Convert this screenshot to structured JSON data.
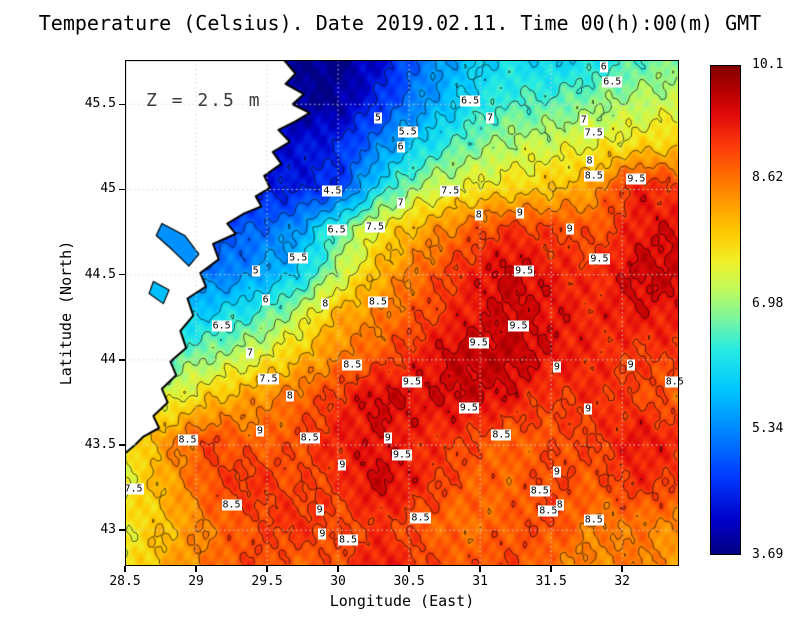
{
  "title": "Temperature (Celsius). Date 2019.02.11. Time 00(h):00(m) GMT",
  "annotation": "Z = 2.5 m",
  "axes": {
    "xlabel": "Longitude (East)",
    "ylabel": "Latitude (North)",
    "x_ticks": [
      28.5,
      29,
      29.5,
      30,
      30.5,
      31,
      31.5,
      32
    ],
    "y_ticks": [
      43,
      43.5,
      44,
      44.5,
      45,
      45.5
    ],
    "x_range": [
      28.5,
      32.4
    ],
    "y_range": [
      42.79,
      45.76
    ]
  },
  "colorbar": {
    "min": 3.69,
    "max": 10.1,
    "ticks": [
      "10.1",
      "8.62",
      "6.98",
      "5.34",
      "3.69"
    ],
    "stops": [
      {
        "t": 0.0,
        "c": [
          0,
          0,
          130
        ]
      },
      {
        "t": 0.07,
        "c": [
          0,
          0,
          200
        ]
      },
      {
        "t": 0.16,
        "c": [
          0,
          60,
          255
        ]
      },
      {
        "t": 0.26,
        "c": [
          0,
          140,
          255
        ]
      },
      {
        "t": 0.34,
        "c": [
          0,
          200,
          255
        ]
      },
      {
        "t": 0.42,
        "c": [
          40,
          235,
          226
        ]
      },
      {
        "t": 0.48,
        "c": [
          120,
          245,
          160
        ]
      },
      {
        "t": 0.54,
        "c": [
          190,
          250,
          95
        ]
      },
      {
        "t": 0.6,
        "c": [
          240,
          240,
          40
        ]
      },
      {
        "t": 0.66,
        "c": [
          255,
          200,
          0
        ]
      },
      {
        "t": 0.72,
        "c": [
          255,
          155,
          0
        ]
      },
      {
        "t": 0.78,
        "c": [
          255,
          105,
          0
        ]
      },
      {
        "t": 0.84,
        "c": [
          250,
          55,
          10
        ]
      },
      {
        "t": 0.9,
        "c": [
          225,
          10,
          10
        ]
      },
      {
        "t": 0.95,
        "c": [
          180,
          0,
          0
        ]
      },
      {
        "t": 1.0,
        "c": [
          130,
          0,
          0
        ]
      }
    ]
  },
  "chart_data": {
    "type": "heatmap",
    "title": "Temperature (Celsius). Date 2019.02.11. Time 00(h):00(m) GMT",
    "xlabel": "Longitude (East)",
    "ylabel": "Latitude (North)",
    "depth_annotation": "Z = 2.5 m",
    "colorbar_range": [
      3.69,
      10.1
    ],
    "contour_levels": [
      4.5,
      5,
      5.5,
      6,
      6.5,
      7,
      7.5,
      8,
      8.5,
      9,
      9.5
    ],
    "x": [
      28.5,
      28.8,
      29.1,
      29.4,
      29.7,
      30.0,
      30.3,
      30.6,
      30.9,
      31.2,
      31.5,
      31.8,
      32.1,
      32.4
    ],
    "y": [
      45.76,
      45.51,
      45.27,
      45.02,
      44.77,
      44.52,
      44.28,
      44.03,
      43.78,
      43.53,
      43.29,
      43.04,
      42.79
    ],
    "values": [
      [
        4.0,
        4.0,
        4.0,
        4.0,
        3.8,
        3.7,
        4.2,
        5.2,
        5.8,
        6.2,
        6.0,
        6.2,
        6.6,
        6.8
      ],
      [
        4.0,
        4.0,
        4.0,
        4.0,
        3.8,
        3.8,
        4.6,
        5.4,
        6.1,
        6.5,
        6.6,
        6.9,
        7.1,
        7.3
      ],
      [
        4.2,
        4.2,
        4.2,
        4.2,
        4.2,
        4.5,
        5.3,
        6.1,
        6.7,
        7.1,
        7.3,
        7.5,
        7.7,
        7.9
      ],
      [
        4.3,
        4.3,
        4.3,
        4.3,
        4.4,
        4.6,
        6.2,
        7.1,
        7.5,
        7.7,
        7.9,
        8.3,
        9.3,
        9.0
      ],
      [
        4.8,
        4.8,
        4.8,
        5.0,
        5.4,
        6.6,
        7.6,
        8.2,
        8.7,
        9.1,
        9.0,
        8.8,
        9.3,
        9.5
      ],
      [
        5.2,
        5.2,
        5.1,
        5.4,
        5.9,
        7.1,
        8.1,
        8.7,
        9.2,
        9.6,
        9.3,
        9.1,
        9.6,
        9.6
      ],
      [
        5.8,
        5.8,
        6.0,
        6.4,
        7.1,
        8.1,
        8.5,
        8.9,
        9.3,
        9.6,
        9.4,
        9.2,
        9.4,
        9.3
      ],
      [
        6.5,
        6.6,
        6.9,
        7.3,
        7.9,
        8.5,
        8.8,
        9.3,
        9.7,
        9.7,
        9.4,
        9.2,
        9.0,
        9.1
      ],
      [
        7.0,
        7.3,
        7.9,
        8.3,
        8.7,
        9.1,
        9.6,
        9.4,
        9.6,
        9.4,
        9.0,
        9.2,
        9.0,
        8.7
      ],
      [
        7.4,
        8.4,
        9.0,
        8.7,
        8.9,
        9.3,
        9.4,
        9.2,
        9.0,
        8.7,
        8.9,
        9.0,
        9.4,
        9.2
      ],
      [
        7.5,
        8.2,
        8.9,
        9.2,
        8.9,
        9.1,
        9.6,
        9.2,
        8.8,
        8.7,
        9.0,
        8.8,
        9.2,
        9.0
      ],
      [
        7.6,
        8.0,
        8.6,
        8.9,
        9.2,
        8.9,
        9.1,
        8.8,
        8.6,
        8.8,
        9.0,
        8.5,
        8.6,
        8.4
      ],
      [
        7.5,
        8.2,
        8.6,
        9.0,
        8.7,
        8.9,
        9.4,
        9.0,
        8.8,
        9.0,
        8.6,
        8.4,
        8.6,
        8.2
      ]
    ],
    "contour_labels": [
      {
        "lon": 31.87,
        "lat": 45.72,
        "v": "6"
      },
      {
        "lon": 31.93,
        "lat": 45.63,
        "v": "6.5"
      },
      {
        "lon": 30.93,
        "lat": 45.52,
        "v": "6.5"
      },
      {
        "lon": 30.28,
        "lat": 45.42,
        "v": "5"
      },
      {
        "lon": 31.07,
        "lat": 45.42,
        "v": "7"
      },
      {
        "lon": 30.49,
        "lat": 45.34,
        "v": "5.5"
      },
      {
        "lon": 31.73,
        "lat": 45.41,
        "v": "7"
      },
      {
        "lon": 31.8,
        "lat": 45.33,
        "v": "7.5"
      },
      {
        "lon": 30.44,
        "lat": 45.25,
        "v": "6"
      },
      {
        "lon": 31.77,
        "lat": 45.17,
        "v": "8"
      },
      {
        "lon": 31.8,
        "lat": 45.08,
        "v": "8.5"
      },
      {
        "lon": 32.1,
        "lat": 45.06,
        "v": "9.5"
      },
      {
        "lon": 29.96,
        "lat": 44.99,
        "v": "4.5"
      },
      {
        "lon": 30.79,
        "lat": 44.99,
        "v": "7.5"
      },
      {
        "lon": 30.44,
        "lat": 44.92,
        "v": "7"
      },
      {
        "lon": 30.99,
        "lat": 44.85,
        "v": "8"
      },
      {
        "lon": 31.28,
        "lat": 44.86,
        "v": "9"
      },
      {
        "lon": 29.99,
        "lat": 44.76,
        "v": "6.5"
      },
      {
        "lon": 30.26,
        "lat": 44.78,
        "v": "7.5"
      },
      {
        "lon": 31.63,
        "lat": 44.77,
        "v": "9"
      },
      {
        "lon": 29.72,
        "lat": 44.6,
        "v": "5.5"
      },
      {
        "lon": 29.42,
        "lat": 44.52,
        "v": "5"
      },
      {
        "lon": 31.84,
        "lat": 44.59,
        "v": "9.5"
      },
      {
        "lon": 31.31,
        "lat": 44.52,
        "v": "9.5"
      },
      {
        "lon": 29.49,
        "lat": 44.35,
        "v": "6"
      },
      {
        "lon": 29.91,
        "lat": 44.33,
        "v": "8"
      },
      {
        "lon": 30.28,
        "lat": 44.34,
        "v": "8.5"
      },
      {
        "lon": 31.27,
        "lat": 44.2,
        "v": "9.5"
      },
      {
        "lon": 29.18,
        "lat": 44.2,
        "v": "6.5"
      },
      {
        "lon": 30.99,
        "lat": 44.1,
        "v": "9.5"
      },
      {
        "lon": 29.38,
        "lat": 44.04,
        "v": "7"
      },
      {
        "lon": 30.1,
        "lat": 43.97,
        "v": "8.5"
      },
      {
        "lon": 31.54,
        "lat": 43.96,
        "v": "9"
      },
      {
        "lon": 32.06,
        "lat": 43.97,
        "v": "9"
      },
      {
        "lon": 29.51,
        "lat": 43.89,
        "v": "7.5"
      },
      {
        "lon": 30.52,
        "lat": 43.87,
        "v": "9.5"
      },
      {
        "lon": 32.37,
        "lat": 43.87,
        "v": "8.5"
      },
      {
        "lon": 29.66,
        "lat": 43.79,
        "v": "8"
      },
      {
        "lon": 30.92,
        "lat": 43.72,
        "v": "9.5"
      },
      {
        "lon": 31.76,
        "lat": 43.71,
        "v": "9"
      },
      {
        "lon": 28.94,
        "lat": 43.53,
        "v": "8.5"
      },
      {
        "lon": 29.45,
        "lat": 43.58,
        "v": "9"
      },
      {
        "lon": 29.8,
        "lat": 43.54,
        "v": "8.5"
      },
      {
        "lon": 30.35,
        "lat": 43.54,
        "v": "9"
      },
      {
        "lon": 31.15,
        "lat": 43.56,
        "v": "8.5"
      },
      {
        "lon": 30.45,
        "lat": 43.44,
        "v": "9.5"
      },
      {
        "lon": 30.03,
        "lat": 43.38,
        "v": "9"
      },
      {
        "lon": 31.54,
        "lat": 43.34,
        "v": "9"
      },
      {
        "lon": 28.56,
        "lat": 43.24,
        "v": "7.5"
      },
      {
        "lon": 31.42,
        "lat": 43.23,
        "v": "8.5"
      },
      {
        "lon": 29.25,
        "lat": 43.15,
        "v": "8.5"
      },
      {
        "lon": 31.56,
        "lat": 43.15,
        "v": "8"
      },
      {
        "lon": 29.87,
        "lat": 43.12,
        "v": "9"
      },
      {
        "lon": 30.58,
        "lat": 43.07,
        "v": "8.5"
      },
      {
        "lon": 31.48,
        "lat": 43.11,
        "v": "8.5"
      },
      {
        "lon": 31.8,
        "lat": 43.06,
        "v": "8.5"
      },
      {
        "lon": 29.89,
        "lat": 42.98,
        "v": "9"
      },
      {
        "lon": 30.07,
        "lat": 42.94,
        "v": "8.5"
      }
    ],
    "coastline": [
      [
        29.62,
        45.76
      ],
      [
        29.7,
        45.68
      ],
      [
        29.63,
        45.62
      ],
      [
        29.76,
        45.56
      ],
      [
        29.68,
        45.5
      ],
      [
        29.8,
        45.45
      ],
      [
        29.7,
        45.4
      ],
      [
        29.58,
        45.35
      ],
      [
        29.66,
        45.28
      ],
      [
        29.54,
        45.22
      ],
      [
        29.6,
        45.15
      ],
      [
        29.48,
        45.08
      ],
      [
        29.52,
        45.01
      ],
      [
        29.42,
        44.96
      ],
      [
        29.46,
        44.9
      ],
      [
        29.34,
        44.86
      ],
      [
        29.22,
        44.8
      ],
      [
        29.28,
        44.74
      ],
      [
        29.12,
        44.68
      ],
      [
        29.16,
        44.59
      ],
      [
        29.03,
        44.51
      ],
      [
        29.07,
        44.43
      ],
      [
        28.94,
        44.36
      ],
      [
        28.98,
        44.26
      ],
      [
        28.89,
        44.17
      ],
      [
        28.93,
        44.07
      ],
      [
        28.82,
        43.99
      ],
      [
        28.86,
        43.91
      ],
      [
        28.76,
        43.83
      ],
      [
        28.8,
        43.75
      ],
      [
        28.7,
        43.67
      ],
      [
        28.74,
        43.6
      ],
      [
        28.63,
        43.55
      ],
      [
        28.57,
        43.5
      ],
      [
        28.5,
        43.45
      ],
      [
        28.5,
        45.76
      ]
    ],
    "lagoons": [
      {
        "value": 5.4,
        "points": [
          [
            28.76,
            44.8
          ],
          [
            28.92,
            44.73
          ],
          [
            29.02,
            44.62
          ],
          [
            28.95,
            44.55
          ],
          [
            28.84,
            44.64
          ],
          [
            28.72,
            44.73
          ]
        ]
      },
      {
        "value": 5.8,
        "points": [
          [
            28.7,
            44.46
          ],
          [
            28.81,
            44.41
          ],
          [
            28.77,
            44.33
          ],
          [
            28.67,
            44.39
          ]
        ]
      }
    ]
  }
}
